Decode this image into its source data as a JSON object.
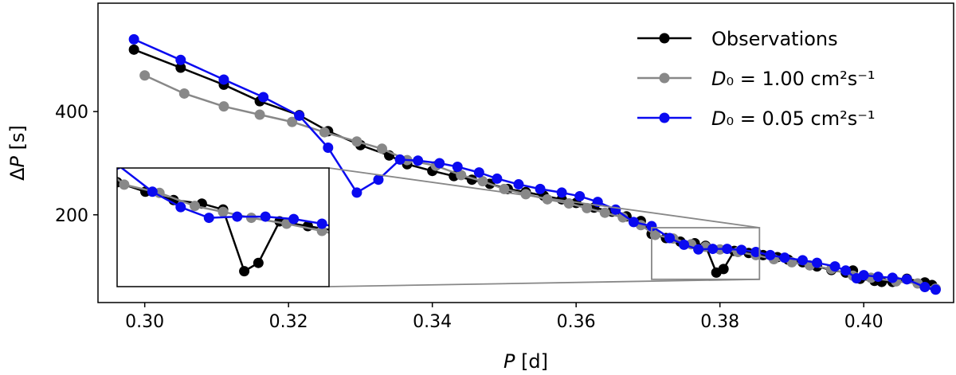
{
  "chart_data": {
    "type": "line",
    "xlabel": "P [d]",
    "ylabel": "ΔP [s]",
    "xlim": [
      0.2935,
      0.4125
    ],
    "ylim": [
      30,
      610
    ],
    "xticks": [
      0.3,
      0.32,
      0.34,
      0.36,
      0.38,
      0.4
    ],
    "xtick_labels": [
      "0.30",
      "0.32",
      "0.34",
      "0.36",
      "0.38",
      "0.40"
    ],
    "yticks": [
      200,
      400
    ],
    "ytick_labels": [
      "200",
      "400"
    ],
    "legend_position": "top-right",
    "inset": {
      "xlim": [
        0.3705,
        0.3855
      ],
      "ylim": [
        75,
        175
      ],
      "placement": "lower-left"
    },
    "series": [
      {
        "name": "Observations",
        "color": "#000000",
        "points": [
          [
            0.2985,
            520
          ],
          [
            0.305,
            485
          ],
          [
            0.311,
            452
          ],
          [
            0.316,
            420
          ],
          [
            0.3215,
            393
          ],
          [
            0.3255,
            362
          ],
          [
            0.33,
            335
          ],
          [
            0.334,
            315
          ],
          [
            0.3365,
            298
          ],
          [
            0.34,
            285
          ],
          [
            0.343,
            275
          ],
          [
            0.3455,
            268
          ],
          [
            0.348,
            260
          ],
          [
            0.3505,
            250
          ],
          [
            0.353,
            244
          ],
          [
            0.3555,
            237
          ],
          [
            0.358,
            230
          ],
          [
            0.36,
            223
          ],
          [
            0.3625,
            214
          ],
          [
            0.365,
            206
          ],
          [
            0.367,
            197
          ],
          [
            0.369,
            188
          ],
          [
            0.3705,
            163
          ],
          [
            0.3725,
            155
          ],
          [
            0.3745,
            148
          ],
          [
            0.3765,
            145
          ],
          [
            0.378,
            140
          ],
          [
            0.3795,
            88
          ],
          [
            0.3805,
            95
          ],
          [
            0.382,
            130
          ],
          [
            0.384,
            126
          ],
          [
            0.386,
            122
          ],
          [
            0.388,
            118
          ],
          [
            0.3895,
            113
          ],
          [
            0.3915,
            108
          ],
          [
            0.3935,
            100
          ],
          [
            0.3955,
            93
          ],
          [
            0.3975,
            88
          ],
          [
            0.3985,
            92
          ],
          [
            0.3995,
            76
          ],
          [
            0.4015,
            72
          ],
          [
            0.4025,
            70
          ],
          [
            0.404,
            70
          ],
          [
            0.406,
            76
          ],
          [
            0.4085,
            69
          ],
          [
            0.4095,
            64
          ]
        ]
      },
      {
        "name": "D₀ = 1.00 cm²s⁻¹",
        "color": "#888888",
        "points": [
          [
            0.3,
            470
          ],
          [
            0.3055,
            435
          ],
          [
            0.311,
            410
          ],
          [
            0.316,
            394
          ],
          [
            0.3205,
            380
          ],
          [
            0.325,
            360
          ],
          [
            0.3295,
            342
          ],
          [
            0.333,
            328
          ],
          [
            0.3365,
            306
          ],
          [
            0.3405,
            295
          ],
          [
            0.344,
            277
          ],
          [
            0.347,
            265
          ],
          [
            0.35,
            250
          ],
          [
            0.353,
            240
          ],
          [
            0.356,
            230
          ],
          [
            0.359,
            222
          ],
          [
            0.3615,
            213
          ],
          [
            0.364,
            204
          ],
          [
            0.3665,
            195
          ],
          [
            0.369,
            180
          ],
          [
            0.371,
            161
          ],
          [
            0.3735,
            154
          ],
          [
            0.376,
            143
          ],
          [
            0.378,
            138
          ],
          [
            0.38,
            133
          ],
          [
            0.3825,
            128
          ],
          [
            0.385,
            122
          ],
          [
            0.3875,
            114
          ],
          [
            0.39,
            108
          ],
          [
            0.3925,
            102
          ],
          [
            0.3955,
            95
          ],
          [
            0.3985,
            82
          ],
          [
            0.401,
            78
          ],
          [
            0.4045,
            71
          ],
          [
            0.4075,
            67
          ],
          [
            0.41,
            57
          ]
        ]
      },
      {
        "name": "D₀ = 0.05 cm²s⁻¹",
        "color": "#0a0af0",
        "points": [
          [
            0.2985,
            540
          ],
          [
            0.305,
            500
          ],
          [
            0.311,
            462
          ],
          [
            0.3165,
            428
          ],
          [
            0.3215,
            392
          ],
          [
            0.3255,
            330
          ],
          [
            0.3295,
            243
          ],
          [
            0.3325,
            268
          ],
          [
            0.3355,
            307
          ],
          [
            0.338,
            305
          ],
          [
            0.341,
            300
          ],
          [
            0.3435,
            293
          ],
          [
            0.3465,
            282
          ],
          [
            0.349,
            270
          ],
          [
            0.352,
            259
          ],
          [
            0.355,
            250
          ],
          [
            0.358,
            243
          ],
          [
            0.3605,
            236
          ],
          [
            0.363,
            225
          ],
          [
            0.3655,
            210
          ],
          [
            0.368,
            186
          ],
          [
            0.3705,
            178
          ],
          [
            0.373,
            155
          ],
          [
            0.375,
            142
          ],
          [
            0.377,
            133
          ],
          [
            0.379,
            134
          ],
          [
            0.381,
            134
          ],
          [
            0.383,
            132
          ],
          [
            0.385,
            128
          ],
          [
            0.387,
            122
          ],
          [
            0.389,
            117
          ],
          [
            0.3915,
            112
          ],
          [
            0.3935,
            107
          ],
          [
            0.396,
            100
          ],
          [
            0.3975,
            92
          ],
          [
            0.399,
            77
          ],
          [
            0.4,
            83
          ],
          [
            0.402,
            80
          ],
          [
            0.404,
            78
          ],
          [
            0.406,
            75
          ],
          [
            0.4085,
            60
          ],
          [
            0.41,
            55
          ]
        ]
      }
    ]
  }
}
